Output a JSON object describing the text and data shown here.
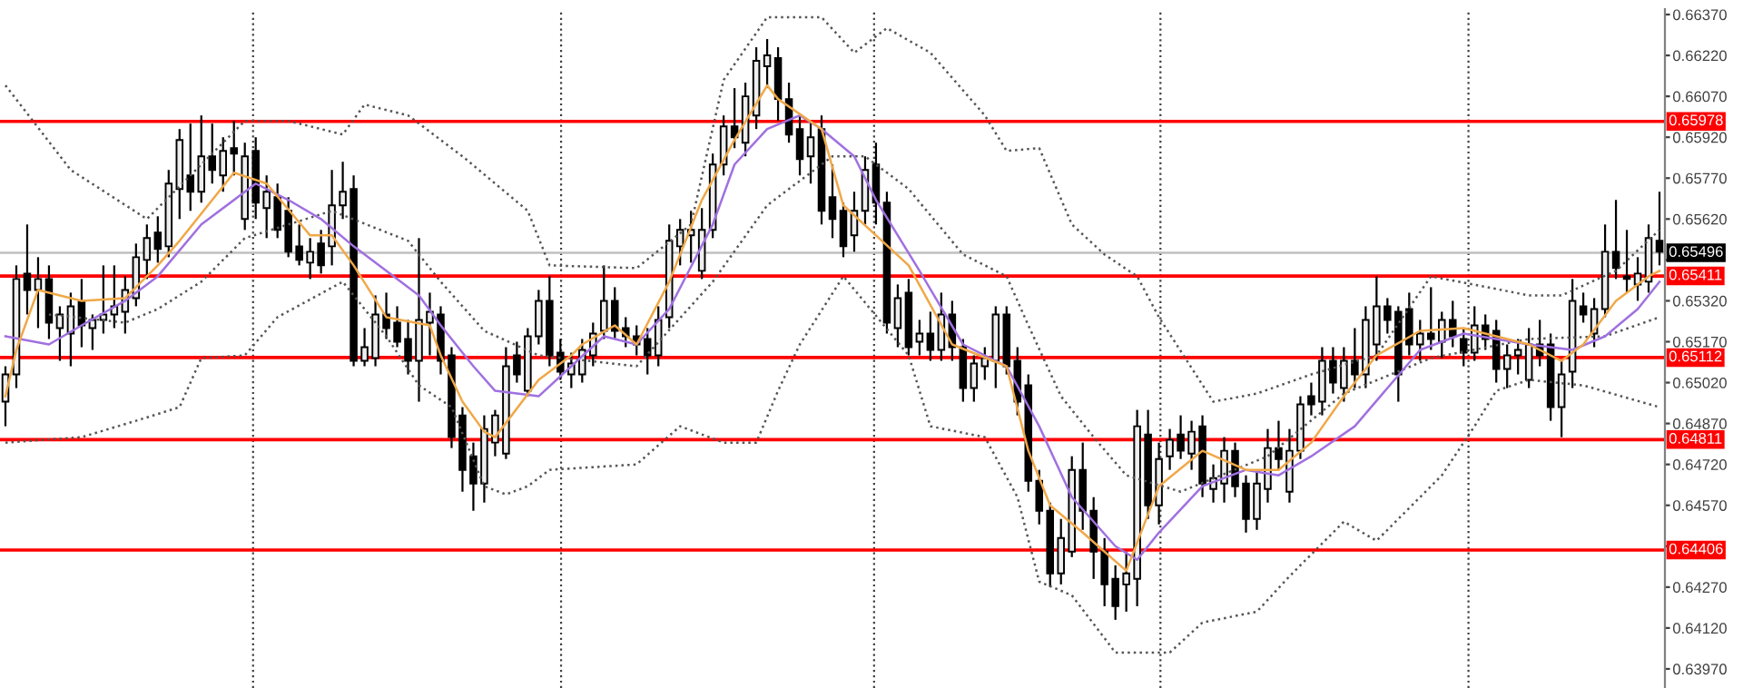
{
  "chart_data": {
    "type": "candlestick",
    "categories": [
      null,
      null,
      null,
      null,
      null,
      null,
      null,
      null,
      null,
      null,
      null,
      null,
      null,
      null,
      null,
      null,
      null,
      null,
      null,
      null,
      null,
      null,
      null,
      null,
      null,
      null,
      null,
      null,
      null,
      null,
      null,
      null,
      null,
      null,
      null,
      null,
      null,
      null,
      null,
      null,
      null,
      null,
      null,
      null,
      null,
      null,
      null,
      null,
      null,
      null,
      null,
      null,
      null,
      null,
      null,
      null,
      null,
      null,
      null,
      null,
      null,
      null,
      null,
      null,
      null,
      null,
      null,
      null,
      null,
      null,
      null,
      null,
      null,
      null,
      null,
      null,
      null,
      null,
      null,
      null,
      null,
      null,
      null,
      null,
      null,
      null,
      null,
      null,
      null,
      null,
      null,
      null,
      null,
      null,
      null,
      null,
      null,
      null,
      null,
      null,
      null,
      null,
      null,
      null,
      null,
      null,
      null,
      null,
      null,
      null,
      null,
      null,
      null,
      null,
      null,
      null,
      null,
      null,
      null,
      null,
      null,
      null,
      null,
      null,
      null,
      null,
      null,
      null,
      null,
      null,
      null,
      null,
      null,
      null,
      null,
      null,
      null,
      null,
      null,
      null,
      null,
      null,
      null,
      null,
      null,
      null,
      null,
      null,
      null,
      null,
      null,
      null,
      null
    ],
    "ohlc": [
      [
        0.6495,
        0.6508,
        0.6486,
        0.6505
      ],
      [
        0.6505,
        0.6545,
        0.65,
        0.654
      ],
      [
        0.6542,
        0.656,
        0.6527,
        0.6536
      ],
      [
        0.6536,
        0.6548,
        0.6522,
        0.654
      ],
      [
        0.654,
        0.6545,
        0.6518,
        0.6524
      ],
      [
        0.6522,
        0.653,
        0.651,
        0.6527
      ],
      [
        0.652,
        0.6535,
        0.6508,
        0.653
      ],
      [
        0.6532,
        0.654,
        0.6515,
        0.6523
      ],
      [
        0.6522,
        0.6527,
        0.6514,
        0.6525
      ],
      [
        0.6525,
        0.6545,
        0.652,
        0.6527
      ],
      [
        0.6527,
        0.6545,
        0.6522,
        0.653
      ],
      [
        0.6528,
        0.6541,
        0.652,
        0.6536
      ],
      [
        0.6533,
        0.6553,
        0.653,
        0.6548
      ],
      [
        0.6547,
        0.656,
        0.654,
        0.6555
      ],
      [
        0.6557,
        0.6563,
        0.6546,
        0.6551
      ],
      [
        0.6552,
        0.658,
        0.6548,
        0.6575
      ],
      [
        0.6573,
        0.6595,
        0.6562,
        0.6591
      ],
      [
        0.6578,
        0.6597,
        0.6565,
        0.6572
      ],
      [
        0.6572,
        0.66,
        0.6568,
        0.6585
      ],
      [
        0.6585,
        0.6597,
        0.6575,
        0.658
      ],
      [
        0.6578,
        0.6592,
        0.6572,
        0.6587
      ],
      [
        0.6588,
        0.6598,
        0.6578,
        0.6586
      ],
      [
        0.6562,
        0.659,
        0.6558,
        0.6585
      ],
      [
        0.6587,
        0.6592,
        0.6562,
        0.6568
      ],
      [
        0.6566,
        0.6578,
        0.6555,
        0.6572
      ],
      [
        0.657,
        0.6575,
        0.6555,
        0.6558
      ],
      [
        0.6565,
        0.657,
        0.6548,
        0.655
      ],
      [
        0.6552,
        0.656,
        0.6545,
        0.6547
      ],
      [
        0.6546,
        0.6555,
        0.654,
        0.655
      ],
      [
        0.6553,
        0.6558,
        0.6542,
        0.6545
      ],
      [
        0.6552,
        0.658,
        0.6545,
        0.6567
      ],
      [
        0.6567,
        0.6583,
        0.6562,
        0.6572
      ],
      [
        0.6573,
        0.6578,
        0.6508,
        0.651
      ],
      [
        0.651,
        0.6522,
        0.6508,
        0.6515
      ],
      [
        0.6511,
        0.6534,
        0.6508,
        0.6527
      ],
      [
        0.6527,
        0.6535,
        0.6518,
        0.6522
      ],
      [
        0.6524,
        0.653,
        0.6515,
        0.6517
      ],
      [
        0.6518,
        0.6525,
        0.6505,
        0.651
      ],
      [
        0.651,
        0.6555,
        0.6495,
        0.6525
      ],
      [
        0.6524,
        0.6535,
        0.6512,
        0.6528
      ],
      [
        0.6527,
        0.653,
        0.6505,
        0.651
      ],
      [
        0.6512,
        0.6515,
        0.6478,
        0.6482
      ],
      [
        0.649,
        0.6493,
        0.6462,
        0.647
      ],
      [
        0.6475,
        0.648,
        0.6455,
        0.6465
      ],
      [
        0.6465,
        0.649,
        0.6458,
        0.6485
      ],
      [
        0.648,
        0.6492,
        0.6475,
        0.649
      ],
      [
        0.6476,
        0.6515,
        0.6474,
        0.6508
      ],
      [
        0.6512,
        0.6517,
        0.6502,
        0.6505
      ],
      [
        0.6499,
        0.6522,
        0.6497,
        0.6519
      ],
      [
        0.6519,
        0.6536,
        0.6516,
        0.6532
      ],
      [
        0.6532,
        0.6541,
        0.6508,
        0.6512
      ],
      [
        0.6513,
        0.6518,
        0.6503,
        0.6506
      ],
      [
        0.6505,
        0.6513,
        0.65,
        0.6509
      ],
      [
        0.6505,
        0.6518,
        0.6502,
        0.6514
      ],
      [
        0.6512,
        0.6524,
        0.6508,
        0.652
      ],
      [
        0.6521,
        0.6545,
        0.6518,
        0.6532
      ],
      [
        0.6532,
        0.6537,
        0.6518,
        0.6521
      ],
      [
        0.6522,
        0.6526,
        0.6515,
        0.6519
      ],
      [
        0.6519,
        0.6523,
        0.6512,
        0.6516
      ],
      [
        0.6518,
        0.6522,
        0.6505,
        0.6512
      ],
      [
        0.6512,
        0.653,
        0.6508,
        0.6525
      ],
      [
        0.6526,
        0.656,
        0.6522,
        0.6554
      ],
      [
        0.6552,
        0.6562,
        0.6545,
        0.6558
      ],
      [
        0.6556,
        0.6565,
        0.6546,
        0.6558
      ],
      [
        0.6543,
        0.6566,
        0.654,
        0.6558
      ],
      [
        0.6558,
        0.6586,
        0.6555,
        0.6582
      ],
      [
        0.6582,
        0.66,
        0.6578,
        0.6596
      ],
      [
        0.6596,
        0.661,
        0.6588,
        0.6592
      ],
      [
        0.659,
        0.6612,
        0.6585,
        0.6607
      ],
      [
        0.66,
        0.6625,
        0.6595,
        0.662
      ],
      [
        0.6618,
        0.6628,
        0.661,
        0.6622
      ],
      [
        0.6621,
        0.6625,
        0.6598,
        0.6606
      ],
      [
        0.6606,
        0.6612,
        0.659,
        0.6593
      ],
      [
        0.6595,
        0.66,
        0.6578,
        0.6584
      ],
      [
        0.6585,
        0.6598,
        0.6575,
        0.6592
      ],
      [
        0.6595,
        0.66,
        0.656,
        0.6565
      ],
      [
        0.657,
        0.6582,
        0.6555,
        0.6562
      ],
      [
        0.6565,
        0.6568,
        0.6548,
        0.6552
      ],
      [
        0.6556,
        0.6572,
        0.655,
        0.6565
      ],
      [
        0.6565,
        0.6585,
        0.656,
        0.658
      ],
      [
        0.6582,
        0.659,
        0.656,
        0.6568
      ],
      [
        0.6568,
        0.6572,
        0.652,
        0.6524
      ],
      [
        0.6522,
        0.6538,
        0.6515,
        0.6533
      ],
      [
        0.6535,
        0.654,
        0.6512,
        0.6515
      ],
      [
        0.6517,
        0.6525,
        0.6512,
        0.652
      ],
      [
        0.652,
        0.6528,
        0.651,
        0.6514
      ],
      [
        0.6514,
        0.6535,
        0.651,
        0.6527
      ],
      [
        0.6527,
        0.6532,
        0.651,
        0.6515
      ],
      [
        0.6515,
        0.6518,
        0.6495,
        0.65
      ],
      [
        0.65,
        0.6512,
        0.6495,
        0.6509
      ],
      [
        0.6508,
        0.6515,
        0.6503,
        0.6511
      ],
      [
        0.651,
        0.653,
        0.65,
        0.6527
      ],
      [
        0.6527,
        0.653,
        0.6505,
        0.6508
      ],
      [
        0.651,
        0.6515,
        0.649,
        0.6495
      ],
      [
        0.6501,
        0.6505,
        0.6462,
        0.6466
      ],
      [
        0.6466,
        0.647,
        0.645,
        0.6455
      ],
      [
        0.6455,
        0.6458,
        0.6427,
        0.6432
      ],
      [
        0.6432,
        0.6452,
        0.6428,
        0.6445
      ],
      [
        0.644,
        0.6475,
        0.6438,
        0.647
      ],
      [
        0.647,
        0.648,
        0.6448,
        0.6455
      ],
      [
        0.6455,
        0.646,
        0.643,
        0.644
      ],
      [
        0.644,
        0.6445,
        0.642,
        0.6428
      ],
      [
        0.643,
        0.6435,
        0.6415,
        0.642
      ],
      [
        0.6428,
        0.644,
        0.6418,
        0.6432
      ],
      [
        0.643,
        0.6492,
        0.642,
        0.6486
      ],
      [
        0.6483,
        0.6492,
        0.6452,
        0.6457
      ],
      [
        0.6457,
        0.648,
        0.645,
        0.6474
      ],
      [
        0.6475,
        0.6485,
        0.647,
        0.6481
      ],
      [
        0.6483,
        0.649,
        0.6474,
        0.6477
      ],
      [
        0.6476,
        0.6488,
        0.647,
        0.6484
      ],
      [
        0.6486,
        0.649,
        0.646,
        0.6465
      ],
      [
        0.6463,
        0.6472,
        0.6458,
        0.6467
      ],
      [
        0.6465,
        0.6482,
        0.6458,
        0.6477
      ],
      [
        0.6477,
        0.648,
        0.646,
        0.6464
      ],
      [
        0.6465,
        0.6468,
        0.6447,
        0.6452
      ],
      [
        0.6452,
        0.647,
        0.6448,
        0.6465
      ],
      [
        0.6463,
        0.6485,
        0.6458,
        0.6478
      ],
      [
        0.6478,
        0.6488,
        0.647,
        0.6474
      ],
      [
        0.6462,
        0.6485,
        0.6458,
        0.6477
      ],
      [
        0.6477,
        0.6497,
        0.6474,
        0.6494
      ],
      [
        0.6497,
        0.6502,
        0.649,
        0.6494
      ],
      [
        0.6495,
        0.6515,
        0.649,
        0.651
      ],
      [
        0.651,
        0.6515,
        0.6498,
        0.6502
      ],
      [
        0.65,
        0.6515,
        0.6495,
        0.651
      ],
      [
        0.651,
        0.6522,
        0.65,
        0.6505
      ],
      [
        0.6505,
        0.653,
        0.65,
        0.6525
      ],
      [
        0.6516,
        0.6541,
        0.651,
        0.653
      ],
      [
        0.653,
        0.6533,
        0.652,
        0.6525
      ],
      [
        0.6528,
        0.653,
        0.6495,
        0.6505
      ],
      [
        0.6529,
        0.6535,
        0.6512,
        0.6516
      ],
      [
        0.6516,
        0.6525,
        0.651,
        0.652
      ],
      [
        0.652,
        0.6537,
        0.6514,
        0.6518
      ],
      [
        0.6517,
        0.6528,
        0.6511,
        0.6525
      ],
      [
        0.6525,
        0.6532,
        0.6515,
        0.6519
      ],
      [
        0.6518,
        0.6522,
        0.6508,
        0.6513
      ],
      [
        0.6513,
        0.653,
        0.651,
        0.6523
      ],
      [
        0.6523,
        0.6527,
        0.6514,
        0.6518
      ],
      [
        0.6521,
        0.6525,
        0.6502,
        0.6507
      ],
      [
        0.6507,
        0.6516,
        0.65,
        0.6512
      ],
      [
        0.6512,
        0.6518,
        0.6505,
        0.6514
      ],
      [
        0.6503,
        0.6522,
        0.65,
        0.6516
      ],
      [
        0.6516,
        0.6525,
        0.6508,
        0.6512
      ],
      [
        0.6516,
        0.652,
        0.6488,
        0.6493
      ],
      [
        0.6493,
        0.651,
        0.6482,
        0.6505
      ],
      [
        0.6506,
        0.654,
        0.65,
        0.6532
      ],
      [
        0.653,
        0.6535,
        0.6524,
        0.6527
      ],
      [
        0.652,
        0.6533,
        0.6515,
        0.6529
      ],
      [
        0.6529,
        0.656,
        0.6526,
        0.655
      ],
      [
        0.655,
        0.6569,
        0.654,
        0.6544
      ],
      [
        0.6541,
        0.6558,
        0.6535,
        0.654
      ],
      [
        0.6538,
        0.6548,
        0.6532,
        0.6542
      ],
      [
        0.6539,
        0.656,
        0.6535,
        0.6555
      ],
      [
        0.6554,
        0.6572,
        0.6545,
        0.655
      ]
    ],
    "series": [
      {
        "type": "line",
        "color": "#555555",
        "line_style": "dotted",
        "values": [
          0.6611,
          null,
          null,
          null,
          null,
          null,
          0.658,
          null,
          null,
          null,
          null,
          null,
          null,
          0.6562,
          null,
          null,
          null,
          null,
          0.6582,
          null,
          null,
          null,
          0.6598,
          null,
          null,
          null,
          0.6598,
          null,
          null,
          null,
          null,
          0.6593,
          null,
          0.6604,
          null,
          null,
          null,
          0.66,
          null,
          null,
          null,
          null,
          0.6585,
          null,
          null,
          null,
          null,
          null,
          0.6565,
          null,
          0.6545,
          null,
          null,
          null,
          null,
          null,
          null,
          null,
          0.6544,
          null,
          null,
          null,
          null,
          0.656,
          null,
          null,
          0.6613,
          null,
          null,
          null,
          0.6636,
          null,
          null,
          null,
          null,
          0.6636,
          null,
          null,
          0.6623,
          null,
          null,
          0.6632,
          null,
          null,
          null,
          0.6623,
          null,
          null,
          null,
          null,
          0.66,
          null,
          0.6587,
          null,
          null,
          0.6588,
          null,
          null,
          0.656,
          null,
          null,
          0.6549,
          null,
          null,
          0.6541,
          null,
          0.6526,
          null,
          null,
          null,
          null,
          0.6495,
          null,
          null,
          null,
          0.6498,
          null,
          null,
          null,
          null,
          0.6505,
          null,
          null,
          null,
          null,
          null,
          0.6512,
          null,
          null,
          null,
          null,
          0.6541,
          null,
          null,
          null,
          null,
          null,
          null,
          null,
          null,
          0.6534,
          null,
          null,
          0.6534,
          null,
          null,
          null,
          null,
          0.6543,
          null,
          null,
          null,
          0.6558
        ]
      },
      {
        "type": "line",
        "color": "#555555",
        "line_style": "dotted",
        "values": [
          null,
          null,
          null,
          null,
          0.6527,
          null,
          null,
          null,
          null,
          null,
          null,
          0.6524,
          null,
          null,
          0.6529,
          null,
          null,
          null,
          0.6539,
          null,
          null,
          null,
          0.6555,
          null,
          null,
          null,
          0.656,
          null,
          null,
          null,
          0.6565,
          null,
          null,
          null,
          null,
          null,
          null,
          0.6554,
          null,
          null,
          0.6539,
          null,
          null,
          null,
          0.6521,
          null,
          null,
          null,
          null,
          0.6512,
          null,
          null,
          null,
          null,
          null,
          null,
          null,
          null,
          0.6508,
          null,
          null,
          null,
          null,
          null,
          null,
          0.6539,
          null,
          null,
          null,
          null,
          0.6567,
          null,
          null,
          null,
          null,
          null,
          0.6585,
          null,
          null,
          0.6585,
          null,
          null,
          null,
          0.6573,
          null,
          null,
          null,
          null,
          0.6549,
          null,
          null,
          null,
          0.6541,
          null,
          0.6523,
          null,
          null,
          0.6497,
          null,
          null,
          0.6482,
          null,
          null,
          0.6468,
          null,
          null,
          null,
          null,
          0.6462,
          null,
          null,
          null,
          null,
          null,
          null,
          null,
          0.6475,
          null,
          null,
          null,
          null,
          null,
          null,
          0.6498,
          null,
          null,
          null,
          null,
          null,
          null,
          null,
          0.6511,
          null,
          null,
          null,
          null,
          null,
          null,
          null,
          null,
          0.6518,
          null,
          null,
          null,
          null,
          null,
          null,
          0.6519,
          null,
          null,
          null,
          null,
          0.6526
        ]
      },
      {
        "type": "line",
        "color": "#555555",
        "line_style": "dotted",
        "values": [
          0.648,
          null,
          null,
          null,
          null,
          null,
          null,
          0.6482,
          null,
          null,
          null,
          null,
          0.6488,
          null,
          null,
          null,
          0.6493,
          null,
          0.6511,
          null,
          null,
          null,
          0.6512,
          null,
          null,
          0.6526,
          null,
          null,
          null,
          null,
          null,
          0.6539,
          null,
          null,
          null,
          0.6519,
          null,
          null,
          0.6501,
          null,
          null,
          0.6493,
          null,
          null,
          0.6464,
          null,
          0.6461,
          null,
          0.6464,
          null,
          0.647,
          null,
          null,
          null,
          null,
          null,
          null,
          null,
          0.6472,
          null,
          null,
          null,
          0.6486,
          null,
          null,
          null,
          0.648,
          null,
          null,
          0.648,
          null,
          0.6499,
          null,
          0.6516,
          null,
          null,
          null,
          0.6541,
          null,
          null,
          null,
          null,
          null,
          0.6512,
          null,
          0.6486,
          null,
          null,
          null,
          null,
          0.6482,
          null,
          null,
          0.646,
          null,
          0.6429,
          null,
          null,
          0.6424,
          null,
          null,
          null,
          0.6403,
          null,
          null,
          null,
          null,
          0.6403,
          null,
          null,
          0.6414,
          null,
          null,
          null,
          null,
          0.6418,
          null,
          null,
          0.6431,
          null,
          null,
          null,
          null,
          0.6451,
          null,
          null,
          0.6444,
          null,
          null,
          null,
          null,
          null,
          0.6468,
          null,
          null,
          0.6486,
          null,
          0.6499,
          null,
          null,
          0.6503,
          null,
          null,
          null,
          null,
          0.6501,
          null,
          null,
          null,
          null,
          null,
          null,
          0.6493
        ]
      },
      {
        "type": "line",
        "color": "#a070e0",
        "line_style": "solid",
        "values": [
          0.6519,
          null,
          null,
          null,
          0.6516,
          null,
          null,
          0.6523,
          null,
          null,
          null,
          0.6532,
          null,
          null,
          0.6541,
          null,
          null,
          null,
          0.656,
          null,
          null,
          null,
          null,
          0.6575,
          null,
          null,
          0.6569,
          null,
          null,
          0.6562,
          null,
          null,
          0.6552,
          null,
          null,
          null,
          null,
          null,
          0.6534,
          null,
          0.6523,
          null,
          null,
          0.6508,
          null,
          0.6499,
          null,
          null,
          null,
          0.6497,
          null,
          null,
          0.6508,
          null,
          null,
          0.6519,
          null,
          null,
          0.6516,
          null,
          null,
          0.6529,
          null,
          null,
          null,
          0.656,
          null,
          0.6582,
          null,
          null,
          0.6595,
          null,
          null,
          0.66,
          null,
          0.6595,
          null,
          null,
          0.6585,
          null,
          0.6569,
          null,
          null,
          null,
          0.6543,
          null,
          null,
          null,
          0.6516,
          null,
          null,
          null,
          0.6508,
          null,
          null,
          0.6486,
          null,
          null,
          0.646,
          null,
          null,
          null,
          0.6442,
          null,
          0.6437,
          null,
          0.6447,
          null,
          null,
          null,
          0.6464,
          null,
          null,
          null,
          0.647,
          null,
          null,
          0.6468,
          null,
          null,
          0.6475,
          null,
          null,
          null,
          0.6486,
          null,
          null,
          null,
          null,
          null,
          0.6514,
          null,
          null,
          null,
          0.652,
          null,
          null,
          null,
          null,
          null,
          0.6516,
          null,
          null,
          null,
          0.6514,
          null,
          null,
          0.6519,
          null,
          null,
          0.6529,
          null,
          0.6539
        ]
      },
      {
        "type": "line",
        "color": "#f0a848",
        "line_style": "solid",
        "values": [
          0.6497,
          0.6514,
          null,
          0.6536,
          null,
          null,
          null,
          0.6532,
          null,
          null,
          null,
          0.6533,
          null,
          null,
          0.6545,
          null,
          0.6554,
          null,
          null,
          null,
          null,
          0.6579,
          null,
          null,
          0.6575,
          null,
          null,
          null,
          0.6556,
          null,
          0.6556,
          null,
          0.6545,
          null,
          null,
          0.6526,
          null,
          null,
          null,
          0.6523,
          0.6512,
          null,
          0.6495,
          null,
          0.6484,
          0.6482,
          null,
          null,
          null,
          0.6503,
          null,
          null,
          0.6512,
          0.6516,
          null,
          null,
          0.6523,
          null,
          0.6516,
          null,
          null,
          0.6539,
          null,
          null,
          0.6569,
          null,
          null,
          0.6591,
          null,
          null,
          0.6611,
          0.6606,
          null,
          null,
          null,
          0.6595,
          null,
          0.6567,
          null,
          null,
          null,
          null,
          null,
          0.6545,
          null,
          null,
          null,
          0.6516,
          null,
          null,
          null,
          null,
          0.6508,
          null,
          0.6477,
          null,
          0.6457,
          null,
          null,
          0.6447,
          null,
          null,
          null,
          0.6433,
          null,
          null,
          0.6464,
          null,
          null,
          null,
          0.6477,
          null,
          null,
          null,
          0.647,
          null,
          null,
          0.647,
          null,
          null,
          0.648,
          null,
          null,
          0.6497,
          null,
          null,
          0.6512,
          null,
          null,
          null,
          0.6521,
          null,
          null,
          null,
          0.6522,
          null,
          null,
          null,
          null,
          null,
          0.6516,
          null,
          null,
          0.651,
          null,
          0.6516,
          null,
          null,
          0.6532,
          null,
          null,
          0.6541,
          0.6543
        ]
      }
    ],
    "ref_lines": [
      {
        "axis": "y",
        "value": 0.65978,
        "label": "0.65978",
        "color": "#ff0000"
      },
      {
        "axis": "y",
        "value": 0.65496,
        "label": "0.65496",
        "color": "#c0c0c0"
      },
      {
        "axis": "y",
        "value": 0.65411,
        "label": "0.65411",
        "color": "#ff0000"
      },
      {
        "axis": "y",
        "value": 0.65112,
        "label": "0.65112",
        "color": "#ff0000"
      },
      {
        "axis": "y",
        "value": 0.64811,
        "label": "0.64811",
        "color": "#ff0000"
      },
      {
        "axis": "y",
        "value": 0.64406,
        "label": "0.64406",
        "color": "#ff0000"
      }
    ],
    "ylim": [
      0.639,
      0.6639
    ],
    "yticks": [
      {
        "value": 0.6637,
        "label": "0.66370"
      },
      {
        "value": 0.6622,
        "label": "0.66220"
      },
      {
        "value": 0.6607,
        "label": "0.66070"
      },
      {
        "value": 0.6592,
        "label": "0.65920"
      },
      {
        "value": 0.6577,
        "label": "0.65770"
      },
      {
        "value": 0.6562,
        "label": "0.65620"
      },
      {
        "value": 0.6547,
        "label": null
      },
      {
        "value": 0.6532,
        "label": "0.65320"
      },
      {
        "value": 0.6517,
        "label": "0.65170"
      },
      {
        "value": 0.6502,
        "label": "0.65020"
      },
      {
        "value": 0.6487,
        "label": "0.64870"
      },
      {
        "value": 0.6472,
        "label": "0.64720"
      },
      {
        "value": 0.6457,
        "label": "0.64570"
      },
      {
        "value": 0.6442,
        "label": null
      },
      {
        "value": 0.6427,
        "label": "0.64270"
      },
      {
        "value": 0.6412,
        "label": "0.64120"
      },
      {
        "value": 0.6397,
        "label": "0.63970"
      }
    ],
    "tick_labels": "y"
  }
}
